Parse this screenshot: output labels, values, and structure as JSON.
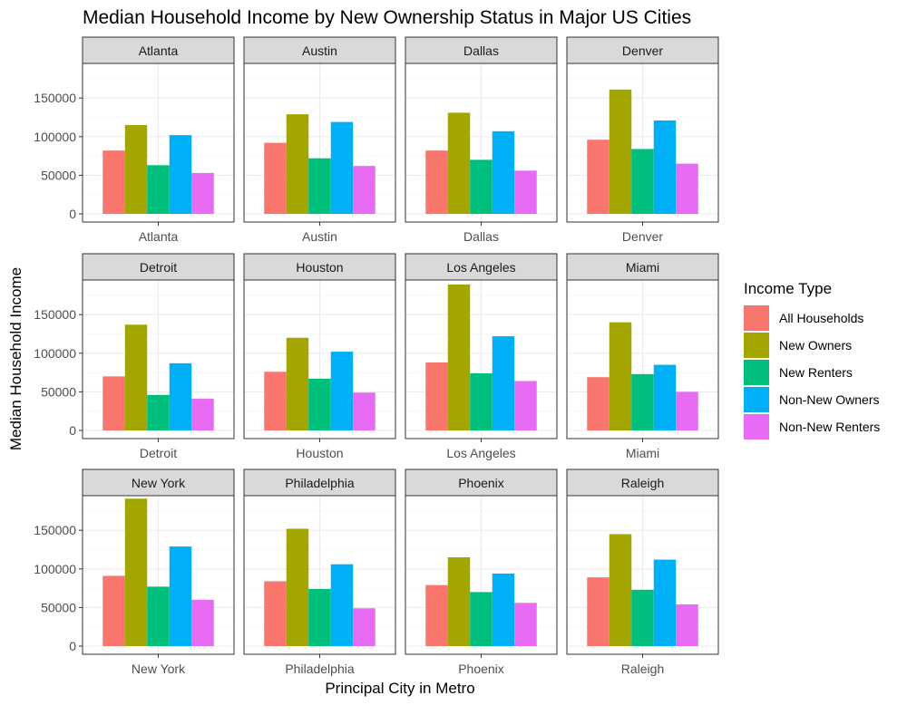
{
  "chart_data": {
    "type": "bar",
    "title": "Median Household Income by New Ownership Status in Major US Cities",
    "xlabel": "Principal City in Metro",
    "ylabel": "Median Household Income",
    "ylim": [
      0,
      198000
    ],
    "yticks": [
      0,
      50000,
      100000,
      150000
    ],
    "grid": true,
    "facets": [
      "Atlanta",
      "Austin",
      "Dallas",
      "Denver",
      "Detroit",
      "Houston",
      "Los Angeles",
      "Miami",
      "New York",
      "Philadelphia",
      "Phoenix",
      "Raleigh"
    ],
    "legend": {
      "title": "Income Type",
      "position": "right"
    },
    "series": [
      {
        "name": "All Households",
        "color": "#F8766D",
        "values": [
          82000,
          92000,
          82000,
          96000,
          70000,
          76000,
          88000,
          69000,
          91000,
          84000,
          79000,
          89000
        ]
      },
      {
        "name": "New Owners",
        "color": "#A3A500",
        "values": [
          115000,
          129000,
          131000,
          161000,
          137000,
          120000,
          189000,
          140000,
          191000,
          152000,
          115000,
          145000
        ]
      },
      {
        "name": "New Renters",
        "color": "#00BF7D",
        "values": [
          63000,
          72000,
          70000,
          84000,
          46000,
          67000,
          74000,
          73000,
          77000,
          74000,
          70000,
          73000
        ]
      },
      {
        "name": "Non-New Owners",
        "color": "#00B0F6",
        "values": [
          102000,
          119000,
          107000,
          121000,
          87000,
          102000,
          122000,
          85000,
          129000,
          106000,
          94000,
          112000
        ]
      },
      {
        "name": "Non-New Renters",
        "color": "#E76BF3",
        "values": [
          53000,
          62000,
          56000,
          65000,
          41000,
          49000,
          64000,
          50000,
          60000,
          49000,
          56000,
          54000
        ]
      }
    ]
  }
}
